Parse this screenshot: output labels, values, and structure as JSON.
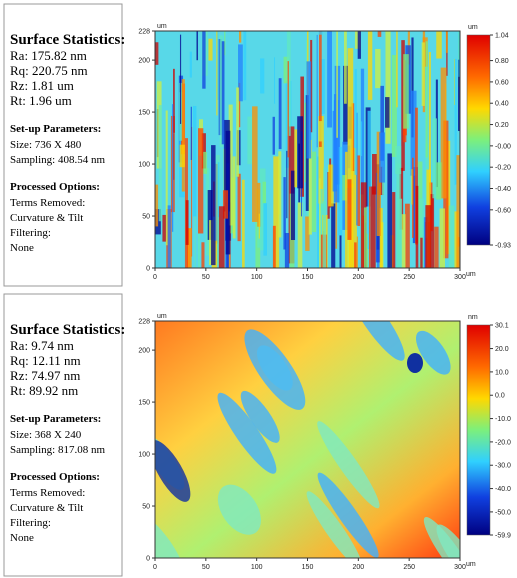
{
  "panels": [
    {
      "stats_title": "Surface Statistics:",
      "stats": [
        "Ra:  175.82 nm",
        "Rq:  220.75 nm",
        "Rz:  1.81 um",
        "Rt:  1.96 um"
      ],
      "setup_title": "Set-up Parameters:",
      "setup": [
        "Size: 736 X 480",
        "Sampling:  408.54 nm"
      ],
      "processed_title": "Processed Options:",
      "processed": [
        "Terms Removed:",
        "Curvature & Tilt",
        "Filtering:",
        "None"
      ],
      "axis_unit": "um",
      "xlim": [
        0,
        300
      ],
      "xticks": [
        0,
        50,
        100,
        150,
        200,
        250,
        300
      ],
      "ylim": [
        0,
        228
      ],
      "yticks": [
        0,
        50,
        100,
        150,
        200,
        228
      ],
      "colorbar_unit": "um",
      "clim": [
        -0.93,
        1.04
      ],
      "cticks": [
        1.04,
        {
          "value": 0.8,
          "label": "0.80"
        },
        {
          "value": 0.6,
          "label": "0.60"
        },
        {
          "value": 0.4,
          "label": "0.40"
        },
        {
          "value": 0.2,
          "label": "0.20"
        },
        {
          "value": 0,
          "label": "-0.00"
        },
        {
          "value": -0.2,
          "label": "-0.20"
        },
        {
          "value": -0.4,
          "label": "-0.40"
        },
        {
          "value": -0.6,
          "label": "-0.60"
        },
        -0.93
      ]
    },
    {
      "stats_title": "Surface Statistics:",
      "stats": [
        "Ra:  9.74 nm",
        "Rq:  12.11 nm",
        "Rz:  74.97 nm",
        "Rt:  89.92 nm"
      ],
      "setup_title": "Set-up Parameters:",
      "setup": [
        "Size: 368 X 240",
        "Sampling:  817.08 nm"
      ],
      "processed_title": "Processed Options:",
      "processed": [
        "Terms Removed:",
        "Curvature & Tilt",
        "Filtering:",
        "None"
      ],
      "axis_unit": "um",
      "xlim": [
        0,
        300
      ],
      "xticks": [
        0,
        50,
        100,
        150,
        200,
        250,
        300
      ],
      "ylim": [
        0,
        228
      ],
      "yticks": [
        0,
        50,
        100,
        150,
        200,
        228
      ],
      "colorbar_unit": "nm",
      "clim": [
        -59.9,
        30.1
      ],
      "cticks": [
        30.1,
        {
          "value": 20,
          "label": "20.0"
        },
        {
          "value": 10,
          "label": "10.0"
        },
        {
          "value": 0,
          "label": "0.0"
        },
        {
          "value": -10,
          "label": "-10.0"
        },
        {
          "value": -20,
          "label": "-20.0"
        },
        {
          "value": -30,
          "label": "-30.0"
        },
        {
          "value": -40,
          "label": "-40.0"
        },
        {
          "value": -50,
          "label": "-50.0"
        },
        -59.9
      ]
    }
  ]
}
